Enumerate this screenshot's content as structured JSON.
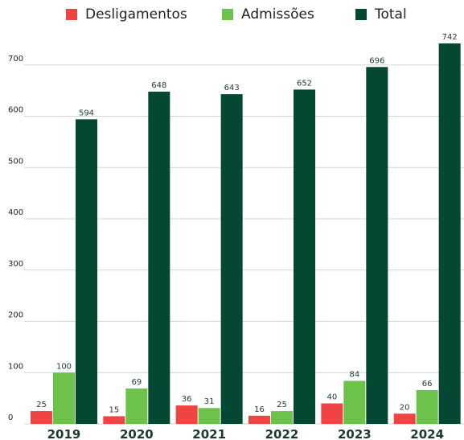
{
  "chart_data": {
    "type": "bar",
    "categories": [
      "2019",
      "2020",
      "2021",
      "2022",
      "2023",
      "2024"
    ],
    "series": [
      {
        "name": "Desligamentos",
        "values": [
          25,
          15,
          36,
          16,
          40,
          20
        ],
        "color": "#ef4444"
      },
      {
        "name": "Admissões",
        "values": [
          100,
          69,
          31,
          25,
          84,
          66
        ],
        "color": "#6cc24a"
      },
      {
        "name": "Total",
        "values": [
          594,
          648,
          643,
          652,
          696,
          742
        ],
        "color": "#044733"
      }
    ],
    "ylim": [
      0,
      742
    ],
    "yticks": [
      0,
      100,
      200,
      300,
      400,
      500,
      600,
      700
    ],
    "grid": true,
    "legend_position": "top-center"
  }
}
